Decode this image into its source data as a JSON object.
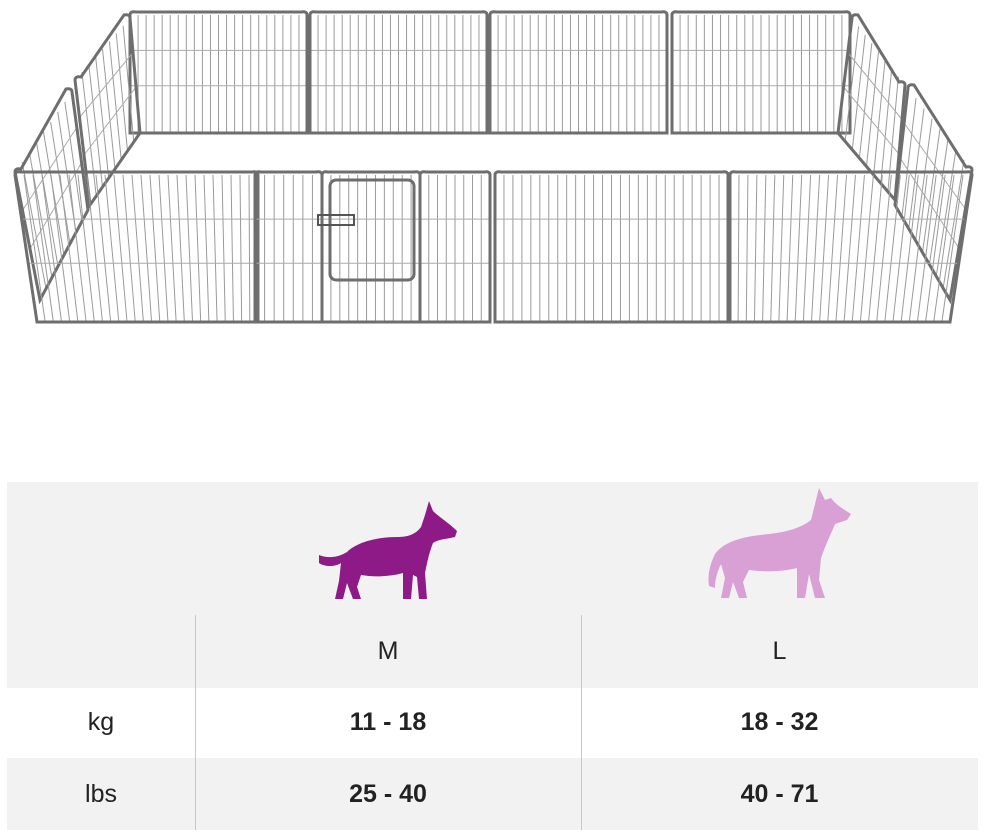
{
  "table": {
    "columns": [
      "M",
      "L"
    ],
    "rows": [
      {
        "label": "kg",
        "values": [
          "11 - 18",
          "18 - 32"
        ]
      },
      {
        "label": "lbs",
        "values": [
          "25 - 40",
          "40 - 71"
        ]
      }
    ]
  }
}
